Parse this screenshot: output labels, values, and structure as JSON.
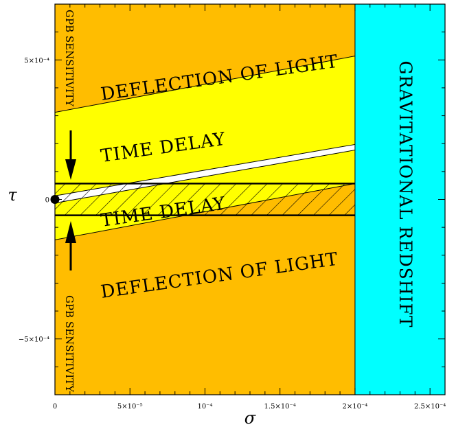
{
  "chart_data": {
    "type": "area",
    "xlabel": "σ",
    "ylabel": "τ",
    "xlim": [
      0,
      0.00026
    ],
    "ylim": [
      -0.0007,
      0.0007
    ],
    "x_ticks": [
      {
        "value": 0,
        "label": "0"
      },
      {
        "value": 5e-05,
        "label": "5×10⁻⁵"
      },
      {
        "value": 0.0001,
        "label": "10⁻⁴"
      },
      {
        "value": 0.00015,
        "label": "1.5×10⁻⁴"
      },
      {
        "value": 0.0002,
        "label": "2×10⁻⁴"
      },
      {
        "value": 0.00025,
        "label": "2.5×10⁻⁴"
      }
    ],
    "y_ticks": [
      {
        "value": 0.0005,
        "label": "5×10⁻⁴"
      },
      {
        "value": 0,
        "label": "0"
      },
      {
        "value": -0.0005,
        "label": "−5×10⁻⁴"
      }
    ],
    "colors": {
      "orange": "#ffbd00",
      "yellow": "#ffff00",
      "cyan": "#00ffff",
      "white": "#ffffff"
    },
    "boundaries": {
      "deflection_upper": {
        "x": [
          0,
          0.0002
        ],
        "y": [
          0.000312,
          0.000514
        ]
      },
      "time_delay_upper": {
        "x": [
          0,
          0.0002
        ],
        "y": [
          1.3e-05,
          0.000197
        ]
      },
      "time_delay_lower": {
        "x": [
          0,
          0.0002
        ],
        "y": [
          -1.3e-05,
          0.000177
        ]
      },
      "deflection_lower": {
        "x": [
          0,
          0.0002
        ],
        "y": [
          -0.000145,
          5.7e-05
        ]
      },
      "redshift_limit_sigma": 0.0002
    },
    "gpb_band": {
      "y_min": -5.7e-05,
      "y_max": 5.7e-05
    },
    "point": {
      "x": 0,
      "y": 0
    },
    "annotations": {
      "deflection_top": "DEFLECTION OF LIGHT",
      "time_delay_top": "TIME DELAY",
      "time_delay_bottom": "TIME DELAY",
      "deflection_bottom": "DEFLECTION OF LIGHT",
      "gravitational_redshift": "GRAVITATIONAL REDSHIFT",
      "gpb_top": "GPB SENSITIVITY",
      "gpb_bottom": "GPB SENSITIVITY"
    }
  }
}
